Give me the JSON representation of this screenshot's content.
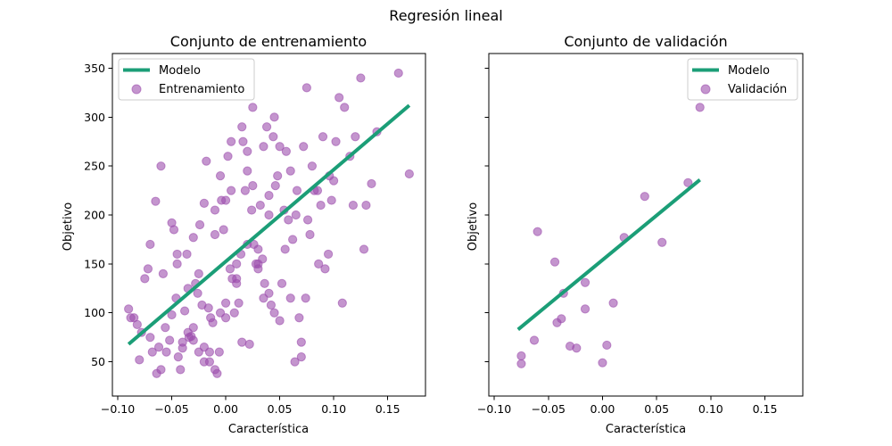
{
  "title": "Regresión lineal",
  "chart_data": [
    {
      "type": "scatter",
      "title": "Conjunto de entrenamiento",
      "xlabel": "Característica",
      "ylabel": "Objetivo",
      "xlim": [
        -0.105,
        0.185
      ],
      "ylim": [
        15,
        365
      ],
      "xticks": [
        -0.1,
        -0.05,
        0.0,
        0.05,
        0.1,
        0.15
      ],
      "xtick_labels": [
        "−0.10",
        "−0.05",
        "0.00",
        "0.05",
        "0.10",
        "0.15"
      ],
      "yticks": [
        50,
        100,
        150,
        200,
        250,
        300,
        350
      ],
      "ytick_labels": [
        "50",
        "100",
        "150",
        "200",
        "250",
        "300",
        "350"
      ],
      "grid": false,
      "legend_position": "upper-left",
      "colors": {
        "model": "#1b9e77",
        "points": "#9c4fae"
      },
      "series": [
        {
          "name": "Modelo",
          "kind": "line",
          "x": [
            -0.09,
            0.17
          ],
          "y": [
            68,
            312
          ]
        },
        {
          "name": "Entrenamiento",
          "kind": "scatter",
          "x": [
            -0.09,
            -0.085,
            -0.08,
            -0.075,
            -0.07,
            -0.065,
            -0.06,
            -0.055,
            -0.05,
            -0.045,
            -0.04,
            -0.035,
            -0.03,
            -0.025,
            -0.02,
            -0.015,
            -0.01,
            -0.005,
            0.0,
            0.005,
            0.01,
            0.015,
            0.02,
            0.025,
            0.03,
            0.035,
            0.04,
            0.045,
            0.05,
            0.055,
            0.06,
            0.065,
            0.07,
            0.075,
            0.08,
            0.085,
            0.09,
            0.095,
            0.1,
            0.105,
            0.11,
            0.115,
            0.12,
            0.125,
            0.13,
            0.135,
            0.14,
            0.16,
            0.17,
            -0.088,
            -0.082,
            -0.078,
            -0.072,
            -0.068,
            -0.062,
            -0.058,
            -0.052,
            -0.048,
            -0.042,
            -0.038,
            -0.032,
            -0.028,
            -0.022,
            -0.018,
            -0.012,
            -0.008,
            -0.002,
            0.002,
            0.008,
            0.012,
            0.018,
            0.022,
            0.028,
            0.032,
            0.038,
            0.042,
            0.048,
            0.052,
            0.058,
            0.062,
            0.068,
            0.072,
            0.078,
            0.082,
            0.088,
            0.092,
            0.098,
            0.102,
            0.108,
            0.118,
            0.128,
            -0.064,
            -0.056,
            -0.046,
            -0.036,
            -0.026,
            -0.016,
            -0.006,
            0.004,
            0.014,
            0.024,
            0.034,
            0.044,
            0.054,
            0.064,
            0.074,
            -0.044,
            -0.034,
            -0.024,
            -0.014,
            -0.004,
            0.006,
            0.016,
            0.026,
            0.036,
            0.046,
            0.056,
            0.066,
            0.076,
            0.086,
            0.096,
            -0.07,
            -0.06,
            -0.05,
            -0.04,
            -0.03,
            -0.02,
            -0.01,
            0.0,
            0.01,
            0.02,
            0.03,
            0.04,
            0.05,
            0.06,
            0.07,
            -0.045,
            -0.035,
            -0.025,
            -0.015,
            -0.005,
            0.005,
            0.015,
            0.025,
            0.035,
            0.045,
            -0.03,
            -0.02,
            -0.01,
            0.0,
            0.01,
            0.02,
            0.03,
            0.04
          ],
          "y": [
            104,
            95,
            52,
            135,
            170,
            214,
            250,
            60,
            98,
            150,
            70,
            80,
            177,
            140,
            212,
            60,
            205,
            240,
            95,
            275,
            130,
            290,
            170,
            310,
            150,
            270,
            200,
            300,
            270,
            165,
            115,
            200,
            55,
            330,
            250,
            225,
            280,
            160,
            235,
            320,
            310,
            260,
            280,
            340,
            210,
            232,
            285,
            345,
            242,
            95,
            88,
            80,
            145,
            60,
            65,
            140,
            72,
            185,
            42,
            102,
            76,
            130,
            108,
            255,
            90,
            38,
            185,
            260,
            100,
            110,
            225,
            68,
            150,
            210,
            290,
            108,
            240,
            130,
            195,
            175,
            95,
            270,
            180,
            225,
            210,
            145,
            215,
            275,
            110,
            210,
            165,
            38,
            85,
            115,
            160,
            120,
            105,
            60,
            145,
            160,
            205,
            155,
            280,
            205,
            50,
            115,
            55,
            75,
            190,
            95,
            215,
            135,
            275,
            170,
            130,
            230,
            265,
            225,
            195,
            150,
            240,
            75,
            42,
            192,
            64,
            72,
            50,
            180,
            215,
            135,
            245,
            165,
            220,
            92,
            245,
            70,
            160,
            125,
            60,
            50,
            100,
            225,
            70,
            230,
            115,
            100,
            85,
            65,
            42,
            110,
            150,
            265,
            145,
            120
          ]
        }
      ]
    },
    {
      "type": "scatter",
      "title": "Conjunto de validación",
      "xlabel": "Característica",
      "ylabel": "Objetivo",
      "xlim": [
        -0.105,
        0.185
      ],
      "ylim": [
        15,
        365
      ],
      "xticks": [
        -0.1,
        -0.05,
        0.0,
        0.05,
        0.1,
        0.15
      ],
      "xtick_labels": [
        "−0.10",
        "−0.05",
        "0.00",
        "0.05",
        "0.10",
        "0.15"
      ],
      "grid": false,
      "legend_position": "upper-right",
      "colors": {
        "model": "#1b9e77",
        "points": "#9c4fae"
      },
      "series": [
        {
          "name": "Modelo",
          "kind": "line",
          "x": [
            -0.078,
            0.09
          ],
          "y": [
            83,
            236
          ]
        },
        {
          "name": "Validación",
          "kind": "scatter",
          "x": [
            -0.075,
            -0.075,
            -0.063,
            -0.06,
            -0.044,
            -0.042,
            -0.038,
            -0.036,
            -0.03,
            -0.024,
            -0.016,
            -0.016,
            0.0,
            0.004,
            0.01,
            0.02,
            0.039,
            0.055,
            0.079,
            0.09
          ],
          "y": [
            48,
            56,
            72,
            183,
            152,
            90,
            94,
            120,
            66,
            64,
            104,
            131,
            49,
            67,
            110,
            177,
            219,
            172,
            233,
            310
          ]
        }
      ]
    }
  ]
}
